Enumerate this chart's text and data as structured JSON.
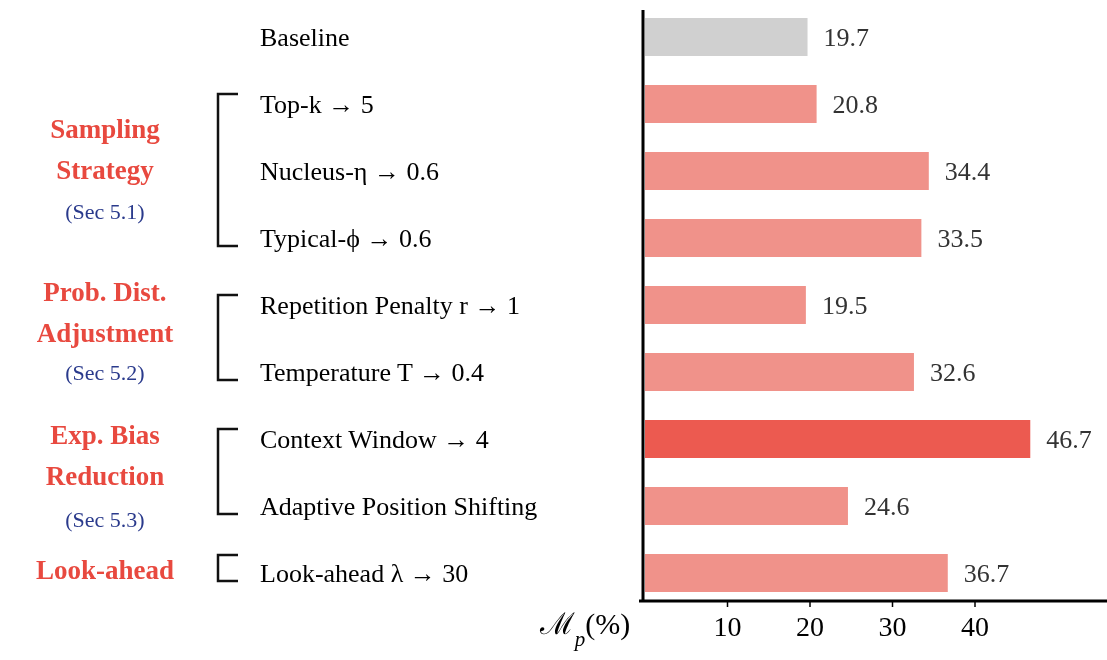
{
  "chart_data": {
    "type": "bar",
    "orientation": "horizontal",
    "categories": [
      "Baseline",
      "Top-k → 5",
      "Nucleus-η → 0.6",
      "Typical-ϕ → 0.6",
      "Repetition Penalty r → 1",
      "Temperature T → 0.4",
      "Context Window → 4",
      "Adaptive Position Shifting",
      "Look-ahead λ → 30"
    ],
    "values": [
      19.7,
      20.8,
      34.4,
      33.5,
      19.5,
      32.6,
      46.7,
      24.6,
      36.7
    ],
    "colors": [
      "#d0d0d0",
      "#f0928a",
      "#f0928a",
      "#f0928a",
      "#f0928a",
      "#f0928a",
      "#ec5a50",
      "#f0928a",
      "#f0928a"
    ],
    "data_labels": true,
    "xlabel": "ℳ$_{p}$(%)",
    "xlim": [
      0,
      56
    ],
    "xticks": [
      10,
      20,
      30,
      40
    ],
    "annotations": [
      "Sampling Strategy",
      "(Sec 5.1)",
      "Prob. Dist. Adjustment",
      "(Sec 5.2)",
      "Exp. Bias Reduction",
      "(Sec 5.3)",
      "Look-ahead"
    ],
    "grid": false
  }
}
